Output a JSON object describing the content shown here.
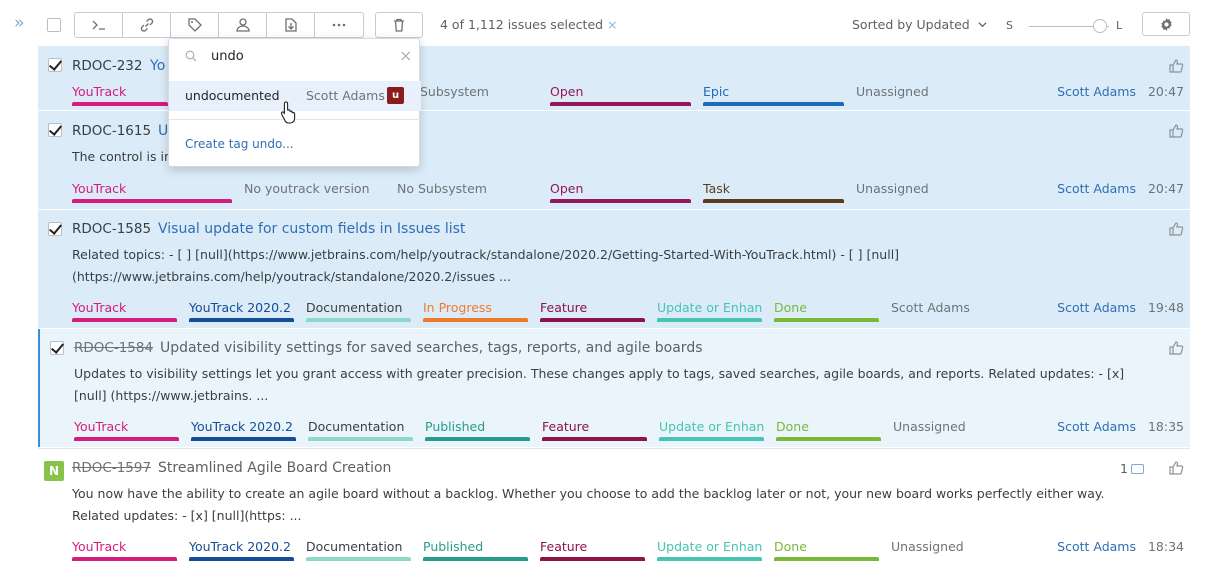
{
  "toolbar": {
    "expand_icon": "double-chevron-right",
    "actions": [
      "command-icon",
      "link-icon",
      "tag-icon",
      "assignee-icon",
      "export-icon",
      "more-icon"
    ],
    "delete_icon": "trash-icon",
    "selection_text": "4 of 1,112 issues selected",
    "clear_selection": "×",
    "sort_label": "Sorted by Updated",
    "size_small": "S",
    "size_large": "L",
    "settings_icon": "gear-icon"
  },
  "tag_popup": {
    "search_value": "undo",
    "clear": "×",
    "option": {
      "name": "undocumented",
      "user": "Scott Adams",
      "avatar": "u"
    },
    "create_label": "Create tag undo..."
  },
  "issues": [
    {
      "id": "RDOC-232",
      "title": "Yo",
      "checked": true,
      "fields": [
        "YouTrack",
        "Subsystem",
        "Open",
        "Epic",
        "Unassigned"
      ],
      "assignee": "Scott Adams",
      "time": "20:47"
    },
    {
      "id": "RDOC-1615",
      "title": "U",
      "checked": true,
      "description": "The control is in",
      "fields": [
        "YouTrack",
        "No youtrack version",
        "No Subsystem",
        "Open",
        "Task",
        "Unassigned"
      ],
      "assignee": "Scott Adams",
      "time": "20:47"
    },
    {
      "id": "RDOC-1585",
      "title": "Visual update for custom fields in Issues list",
      "checked": true,
      "description": "Related topics: - [ ] [null](https://www.jetbrains.com/help/youtrack/standalone/2020.2/Getting-Started-With-YouTrack.html) - [ ] [null] (https://www.jetbrains.com/help/youtrack/standalone/2020.2/issues ...",
      "fields": [
        "YouTrack",
        "YouTrack 2020.2",
        "Documentation",
        "In Progress",
        "Feature",
        "Update or Enhancement",
        "Done",
        "Scott Adams"
      ],
      "assignee": "Scott Adams",
      "time": "19:48"
    },
    {
      "id": "RDOC-1584",
      "title": "Updated visibility settings for saved searches, tags, reports, and agile boards",
      "checked": true,
      "description": "Updates to visibility settings let you grant access with greater precision. These changes apply to tags, saved searches, agile boards, and reports. Related updates: - [x] [null] (https://www.jetbrains. ...",
      "fields": [
        "YouTrack",
        "YouTrack 2020.2",
        "Documentation",
        "Published",
        "Feature",
        "Update or Enhancement",
        "Done",
        "Unassigned"
      ],
      "assignee": "Scott Adams",
      "time": "18:35"
    },
    {
      "id": "RDOC-1597",
      "title": "Streamlined Agile Board Creation",
      "checked": false,
      "badge": "N",
      "comments": "1",
      "description": "You now have the ability to create an agile board without a backlog. Whether you choose to add the backlog later or not, your new board works perfectly either way. Related updates: - [x] [null](https: ...",
      "fields": [
        "YouTrack",
        "YouTrack 2020.2",
        "Documentation",
        "Published",
        "Feature",
        "Update or Enhancement",
        "Done",
        "Unassigned"
      ],
      "assignee": "Scott Adams",
      "time": "18:34"
    }
  ],
  "colors": {
    "project": "#d61c7c",
    "version": "#144e96",
    "doc": "#8fd7c8",
    "open": "#94165b",
    "epic": "#1c6bb8",
    "task": "#5b3c1c",
    "inprogress": "#f07a2b",
    "feature": "#8c1447",
    "update": "#47c4b3",
    "done": "#7ab83a",
    "published": "#289c8c",
    "text_blue": "#2f6eb5"
  }
}
